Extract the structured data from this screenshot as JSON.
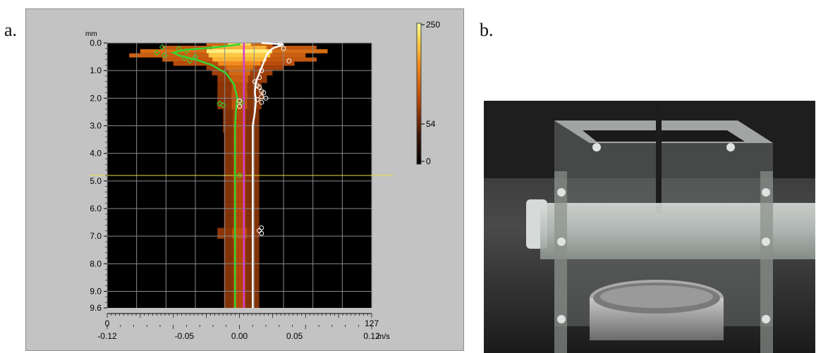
{
  "panels": {
    "a_label": "a.",
    "b_label": "b."
  },
  "chart_data": {
    "type": "heatmap",
    "y_unit": "mm",
    "y_ticks": [
      "0.0",
      "1.0",
      "2.0",
      "3.0",
      "4.0",
      "5.0",
      "6.0",
      "7.0",
      "8.0",
      "9.0",
      "9.6"
    ],
    "y_range": [
      0.0,
      9.6
    ],
    "x_range": [
      -0.12,
      0.12
    ],
    "x_unit": "m/s",
    "x_ticks_bottom": [
      "-0.12",
      "-0.05",
      "0.00",
      "0.05",
      "0.12"
    ],
    "x_ticks_top": [
      "0",
      "127"
    ],
    "colorbar": {
      "ticks": [
        "250",
        "54",
        "0"
      ],
      "colors": [
        "#000000",
        "#3a1405",
        "#b4460a",
        "#f08a1c",
        "#ffd44a",
        "#ffffa0"
      ]
    },
    "grid": true,
    "cursor_depth_mm": 4.8,
    "series": [
      {
        "color": "#33d633",
        "points": [
          [
            0.0,
            0.0
          ],
          [
            0.0,
            0.05
          ],
          [
            -0.02,
            0.15
          ],
          [
            -0.05,
            0.25
          ],
          [
            -0.06,
            0.35
          ],
          [
            -0.055,
            0.45
          ],
          [
            -0.04,
            0.6
          ],
          [
            -0.025,
            0.8
          ],
          [
            -0.012,
            1.1
          ],
          [
            -0.005,
            1.5
          ],
          [
            -0.002,
            2.0
          ],
          [
            -0.003,
            2.4
          ],
          [
            -0.004,
            3.0
          ],
          [
            -0.004,
            4.0
          ],
          [
            -0.004,
            5.0
          ],
          [
            -0.004,
            6.0
          ],
          [
            -0.004,
            7.0
          ],
          [
            -0.004,
            8.0
          ],
          [
            -0.004,
            9.0
          ],
          [
            -0.004,
            9.6
          ]
        ]
      },
      {
        "color": "#ffffff",
        "points": [
          [
            0.02,
            0.0
          ],
          [
            0.04,
            0.05
          ],
          [
            0.03,
            0.2
          ],
          [
            0.025,
            0.4
          ],
          [
            0.022,
            0.7
          ],
          [
            0.02,
            0.9
          ],
          [
            0.018,
            1.1
          ],
          [
            0.015,
            1.4
          ],
          [
            0.014,
            1.8
          ],
          [
            0.015,
            2.1
          ],
          [
            0.014,
            2.5
          ],
          [
            0.012,
            3.0
          ],
          [
            0.012,
            4.0
          ],
          [
            0.012,
            5.0
          ],
          [
            0.012,
            6.0
          ],
          [
            0.012,
            7.0
          ],
          [
            0.012,
            8.0
          ],
          [
            0.012,
            9.0
          ],
          [
            0.012,
            9.6
          ]
        ]
      },
      {
        "color": "#d23cd2",
        "points": [
          [
            0.004,
            0.0
          ],
          [
            0.004,
            9.6
          ]
        ]
      }
    ],
    "green_markers": [
      [
        -0.07,
        0.15
      ],
      [
        -0.055,
        0.2
      ],
      [
        -0.048,
        0.3
      ],
      [
        -0.075,
        0.35
      ],
      [
        -0.068,
        0.45
      ],
      [
        -0.04,
        0.5
      ],
      [
        -0.05,
        0.55
      ],
      [
        -0.045,
        0.65
      ],
      [
        -0.018,
        2.2
      ],
      [
        -0.015,
        2.25
      ],
      [
        0.002,
        2.15
      ],
      [
        0.0,
        4.8
      ]
    ],
    "white_markers": [
      [
        0.037,
        0.05
      ],
      [
        0.04,
        0.2
      ],
      [
        0.045,
        0.65
      ],
      [
        0.02,
        1.0
      ],
      [
        0.018,
        1.25
      ],
      [
        0.014,
        1.4
      ],
      [
        0.016,
        1.55
      ],
      [
        0.018,
        1.6
      ],
      [
        0.02,
        1.75
      ],
      [
        0.022,
        1.8
      ],
      [
        0.02,
        1.95
      ],
      [
        0.024,
        2.0
      ],
      [
        0.02,
        2.15
      ],
      [
        0.016,
        2.05
      ],
      [
        0.0,
        2.1
      ],
      [
        0.0,
        2.3
      ],
      [
        0.02,
        6.7
      ],
      [
        0.018,
        6.8
      ],
      [
        0.02,
        6.9
      ]
    ],
    "heat_rows": [
      {
        "d": 0.05,
        "l": -0.03,
        "r": 0.03,
        "i": 0.9
      },
      {
        "d": 0.15,
        "l": -0.07,
        "r": 0.07,
        "i": 0.8
      },
      {
        "d": 0.3,
        "l": -0.09,
        "r": 0.08,
        "i": 0.95
      },
      {
        "d": 0.45,
        "l": -0.1,
        "r": 0.06,
        "i": 0.85
      },
      {
        "d": 0.6,
        "l": -0.07,
        "r": 0.07,
        "i": 0.8
      },
      {
        "d": 0.75,
        "l": -0.06,
        "r": 0.05,
        "i": 0.7
      },
      {
        "d": 0.9,
        "l": -0.03,
        "r": 0.04,
        "i": 0.6
      },
      {
        "d": 1.05,
        "l": -0.025,
        "r": 0.03,
        "i": 0.55
      },
      {
        "d": 1.3,
        "l": -0.02,
        "r": 0.025,
        "i": 0.5
      },
      {
        "d": 1.6,
        "l": -0.02,
        "r": 0.02,
        "i": 0.45
      },
      {
        "d": 1.9,
        "l": -0.02,
        "r": 0.022,
        "i": 0.45
      },
      {
        "d": 2.2,
        "l": -0.02,
        "r": 0.02,
        "i": 0.45
      },
      {
        "d": 2.6,
        "l": -0.015,
        "r": 0.018,
        "i": 0.4
      },
      {
        "d": 3.0,
        "l": -0.015,
        "r": 0.018,
        "i": 0.4
      },
      {
        "d": 3.5,
        "l": -0.014,
        "r": 0.018,
        "i": 0.4
      },
      {
        "d": 4.0,
        "l": -0.014,
        "r": 0.018,
        "i": 0.4
      },
      {
        "d": 4.5,
        "l": -0.014,
        "r": 0.018,
        "i": 0.4
      },
      {
        "d": 5.0,
        "l": -0.014,
        "r": 0.018,
        "i": 0.4
      },
      {
        "d": 5.5,
        "l": -0.014,
        "r": 0.018,
        "i": 0.4
      },
      {
        "d": 6.0,
        "l": -0.014,
        "r": 0.018,
        "i": 0.4
      },
      {
        "d": 6.5,
        "l": -0.014,
        "r": 0.018,
        "i": 0.4
      },
      {
        "d": 6.9,
        "l": -0.02,
        "r": 0.018,
        "i": 0.45
      },
      {
        "d": 7.3,
        "l": -0.014,
        "r": 0.018,
        "i": 0.4
      },
      {
        "d": 7.8,
        "l": -0.014,
        "r": 0.018,
        "i": 0.4
      },
      {
        "d": 8.3,
        "l": -0.014,
        "r": 0.018,
        "i": 0.4
      },
      {
        "d": 8.8,
        "l": -0.014,
        "r": 0.018,
        "i": 0.4
      },
      {
        "d": 9.3,
        "l": -0.014,
        "r": 0.018,
        "i": 0.4
      },
      {
        "d": 9.55,
        "l": -0.014,
        "r": 0.018,
        "i": 0.4
      }
    ]
  }
}
